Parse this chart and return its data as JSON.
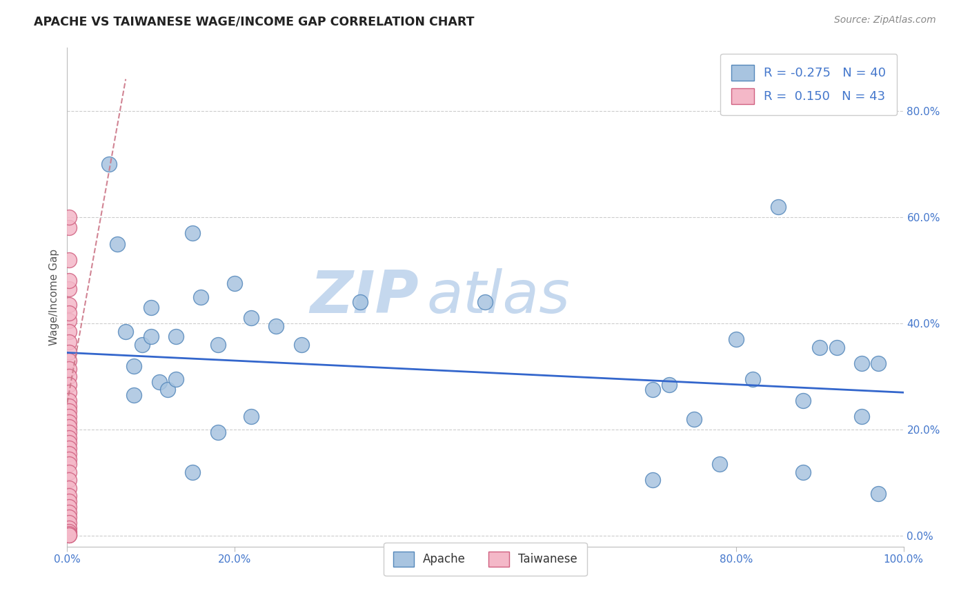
{
  "title": "APACHE VS TAIWANESE WAGE/INCOME GAP CORRELATION CHART",
  "source": "Source: ZipAtlas.com",
  "ylabel": "Wage/Income Gap",
  "xlim": [
    0.0,
    1.0
  ],
  "ylim": [
    -0.02,
    0.92
  ],
  "yticks": [
    0.0,
    0.2,
    0.4,
    0.6,
    0.8
  ],
  "ytick_labels": [
    "0.0%",
    "20.0%",
    "40.0%",
    "60.0%",
    "80.0%"
  ],
  "xticks": [
    0.0,
    0.2,
    0.4,
    0.6,
    0.8,
    1.0
  ],
  "xtick_labels": [
    "0.0%",
    "20.0%",
    "40.0%",
    "60.0%",
    "80.0%",
    "100.0%"
  ],
  "apache_color": "#a8c4e0",
  "apache_edge_color": "#5588bb",
  "taiwanese_color": "#f4b8c8",
  "taiwanese_edge_color": "#d06080",
  "trendline_apache_color": "#3366cc",
  "trendline_taiwanese_color": "#cc7788",
  "tick_color": "#4477cc",
  "watermark_zip_color": "#c5d8ee",
  "watermark_atlas_color": "#c5d8ee",
  "legend_apache_R": "-0.275",
  "legend_apache_N": "40",
  "legend_taiwanese_R": " 0.150",
  "legend_taiwanese_N": "43",
  "apache_x": [
    0.05,
    0.06,
    0.07,
    0.08,
    0.09,
    0.1,
    0.11,
    0.12,
    0.13,
    0.15,
    0.16,
    0.18,
    0.2,
    0.22,
    0.25,
    0.28,
    0.35,
    0.7,
    0.72,
    0.75,
    0.78,
    0.8,
    0.82,
    0.85,
    0.88,
    0.9,
    0.92,
    0.95,
    0.97,
    0.08,
    0.1,
    0.13,
    0.18,
    0.22,
    0.5,
    0.7,
    0.88,
    0.95,
    0.97,
    0.15
  ],
  "apache_y": [
    0.7,
    0.55,
    0.385,
    0.32,
    0.36,
    0.375,
    0.29,
    0.275,
    0.375,
    0.57,
    0.45,
    0.36,
    0.475,
    0.41,
    0.395,
    0.36,
    0.44,
    0.275,
    0.285,
    0.22,
    0.135,
    0.37,
    0.295,
    0.62,
    0.255,
    0.355,
    0.355,
    0.225,
    0.325,
    0.265,
    0.43,
    0.295,
    0.195,
    0.225,
    0.44,
    0.105,
    0.12,
    0.325,
    0.08,
    0.12
  ],
  "taiwanese_x": [
    0.002,
    0.002,
    0.002,
    0.002,
    0.002,
    0.002,
    0.002,
    0.002,
    0.002,
    0.002,
    0.002,
    0.002,
    0.002,
    0.002,
    0.002,
    0.002,
    0.002,
    0.002,
    0.002,
    0.002,
    0.002,
    0.002,
    0.002,
    0.002,
    0.002,
    0.002,
    0.002,
    0.002,
    0.002,
    0.002,
    0.002,
    0.002,
    0.002,
    0.002,
    0.002,
    0.002,
    0.002,
    0.002,
    0.002,
    0.002,
    0.002,
    0.002,
    0.002
  ],
  "taiwanese_y": [
    0.58,
    0.52,
    0.465,
    0.435,
    0.405,
    0.385,
    0.365,
    0.345,
    0.33,
    0.315,
    0.3,
    0.285,
    0.27,
    0.255,
    0.245,
    0.235,
    0.225,
    0.215,
    0.205,
    0.195,
    0.185,
    0.175,
    0.165,
    0.155,
    0.145,
    0.135,
    0.12,
    0.105,
    0.09,
    0.075,
    0.065,
    0.055,
    0.045,
    0.035,
    0.025,
    0.015,
    0.008,
    0.004,
    0.002,
    0.001,
    0.6,
    0.48,
    0.42
  ],
  "apache_trendline_x": [
    0.0,
    1.0
  ],
  "apache_trendline_y": [
    0.345,
    0.27
  ],
  "taiwanese_trendline_x": [
    0.0,
    0.07
  ],
  "taiwanese_trendline_y": [
    0.25,
    0.86
  ]
}
